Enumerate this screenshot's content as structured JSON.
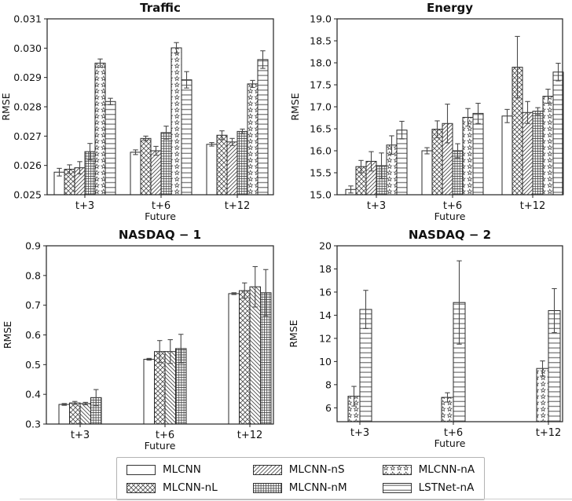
{
  "chart_data": [
    {
      "id": "traffic",
      "type": "bar",
      "title": "Traffic",
      "ylabel": "RMSE",
      "xlabel": "Future",
      "categories": [
        "t+3",
        "t+6",
        "t+12"
      ],
      "ylim": [
        0.025,
        0.031
      ],
      "ytick_values": [
        0.025,
        0.026,
        0.027,
        0.028,
        0.029,
        0.03,
        0.031
      ],
      "ytick_labels": [
        "0.025",
        "0.026",
        "0.027",
        "0.028",
        "0.029",
        "0.030",
        "0.031"
      ],
      "grid": false,
      "series": [
        {
          "name": "MLCNN",
          "hatch": "plain",
          "values": [
            0.02577,
            0.02645,
            0.02672
          ],
          "errors": [
            0.00013,
            8e-05,
            6e-05
          ]
        },
        {
          "name": "MLCNN-nL",
          "hatch": "cross",
          "values": [
            0.02587,
            0.02692,
            0.02703
          ],
          "errors": [
            0.00015,
            8e-05,
            0.00015
          ]
        },
        {
          "name": "MLCNN-nS",
          "hatch": "diag",
          "values": [
            0.02592,
            0.0265,
            0.0268
          ],
          "errors": [
            0.00021,
            0.00015,
            0.00012
          ]
        },
        {
          "name": "MLCNN-nM",
          "hatch": "grid",
          "values": [
            0.02647,
            0.02712,
            0.02716
          ],
          "errors": [
            0.00028,
            0.00022,
            8e-05
          ]
        },
        {
          "name": "MLCNN-nA",
          "hatch": "stars",
          "values": [
            0.02949,
            0.03001,
            0.02878
          ],
          "errors": [
            0.00014,
            0.00018,
            0.00012
          ]
        },
        {
          "name": "LSTNet-nA",
          "hatch": "hlines",
          "values": [
            0.02818,
            0.02892,
            0.02961
          ],
          "errors": [
            0.00011,
            0.00028,
            0.0003
          ]
        }
      ]
    },
    {
      "id": "energy",
      "type": "bar",
      "title": "Energy",
      "ylabel": "RMSE",
      "xlabel": "Future",
      "categories": [
        "t+3",
        "t+6",
        "t+12"
      ],
      "ylim": [
        15.0,
        19.0
      ],
      "ytick_values": [
        15.0,
        15.5,
        16.0,
        16.5,
        17.0,
        17.5,
        18.0,
        18.5,
        19.0
      ],
      "ytick_labels": [
        "15.0",
        "15.5",
        "16.0",
        "16.5",
        "17.0",
        "17.5",
        "18.0",
        "18.5",
        "19.0"
      ],
      "grid": false,
      "series": [
        {
          "name": "MLCNN",
          "hatch": "plain",
          "values": [
            15.12,
            16.0,
            16.79
          ],
          "errors": [
            0.08,
            0.07,
            0.15
          ]
        },
        {
          "name": "MLCNN-nL",
          "hatch": "cross",
          "values": [
            15.64,
            16.49,
            17.9
          ],
          "errors": [
            0.14,
            0.19,
            0.7
          ]
        },
        {
          "name": "MLCNN-nS",
          "hatch": "diag",
          "values": [
            15.76,
            16.62,
            16.87
          ],
          "errors": [
            0.22,
            0.44,
            0.25
          ]
        },
        {
          "name": "MLCNN-nM",
          "hatch": "grid",
          "values": [
            15.66,
            16.0,
            16.9
          ],
          "errors": [
            0.29,
            0.16,
            0.08
          ]
        },
        {
          "name": "MLCNN-nA",
          "hatch": "stars",
          "values": [
            16.13,
            16.76,
            17.24
          ],
          "errors": [
            0.21,
            0.2,
            0.16
          ]
        },
        {
          "name": "LSTNet-nA",
          "hatch": "hlines",
          "values": [
            16.47,
            16.85,
            17.79
          ],
          "errors": [
            0.2,
            0.23,
            0.2
          ]
        }
      ]
    },
    {
      "id": "nasdaq1",
      "type": "bar",
      "title": "NASDAQ − 1",
      "ylabel": "RMSE",
      "xlabel": "Future",
      "categories": [
        "t+3",
        "t+6",
        "t+12"
      ],
      "ylim": [
        0.3,
        0.9
      ],
      "ytick_values": [
        0.3,
        0.4,
        0.5,
        0.6,
        0.7,
        0.8,
        0.9
      ],
      "ytick_labels": [
        "0.3",
        "0.4",
        "0.5",
        "0.6",
        "0.7",
        "0.8",
        "0.9"
      ],
      "grid": false,
      "series": [
        {
          "name": "MLCNN",
          "hatch": "plain",
          "values": [
            0.366,
            0.518,
            0.739
          ],
          "errors": [
            0.003,
            0.003,
            0.003
          ]
        },
        {
          "name": "MLCNN-nL",
          "hatch": "cross",
          "values": [
            0.371,
            0.544,
            0.749
          ],
          "errors": [
            0.005,
            0.037,
            0.026
          ]
        },
        {
          "name": "MLCNN-nS",
          "hatch": "diagback",
          "values": [
            0.369,
            0.544,
            0.762
          ],
          "errors": [
            0.004,
            0.04,
            0.068
          ]
        },
        {
          "name": "MLCNN-nM",
          "hatch": "grid",
          "values": [
            0.389,
            0.554,
            0.742
          ],
          "errors": [
            0.027,
            0.048,
            0.078
          ]
        }
      ]
    },
    {
      "id": "nasdaq2",
      "type": "bar",
      "title": "NASDAQ − 2",
      "ylabel": "RMSE",
      "xlabel": "Future",
      "categories": [
        "t+3",
        "t+6",
        "t+12"
      ],
      "ylim": [
        4.8,
        20
      ],
      "ytick_values": [
        6,
        8,
        10,
        12,
        14,
        16,
        18,
        20
      ],
      "ytick_labels": [
        "6",
        "8",
        "10",
        "12",
        "14",
        "16",
        "18",
        "20"
      ],
      "grid": false,
      "series": [
        {
          "name": "MLCNN-nA",
          "hatch": "stars",
          "values": [
            7.0,
            6.9,
            9.4
          ],
          "errors": [
            0.85,
            0.4,
            0.65
          ]
        },
        {
          "name": "LSTNet-nA",
          "hatch": "hlines",
          "values": [
            14.5,
            15.1,
            14.4
          ],
          "errors": [
            1.65,
            3.6,
            1.9
          ]
        }
      ]
    }
  ],
  "legend": {
    "entries": [
      {
        "label": "MLCNN",
        "hatch": "plain"
      },
      {
        "label": "MLCNN-nS",
        "hatch": "diag"
      },
      {
        "label": "MLCNN-nA",
        "hatch": "stars"
      },
      {
        "label": "MLCNN-nL",
        "hatch": "cross"
      },
      {
        "label": "MLCNN-nM",
        "hatch": "grid"
      },
      {
        "label": "LSTNet-nA",
        "hatch": "hlines"
      }
    ]
  }
}
